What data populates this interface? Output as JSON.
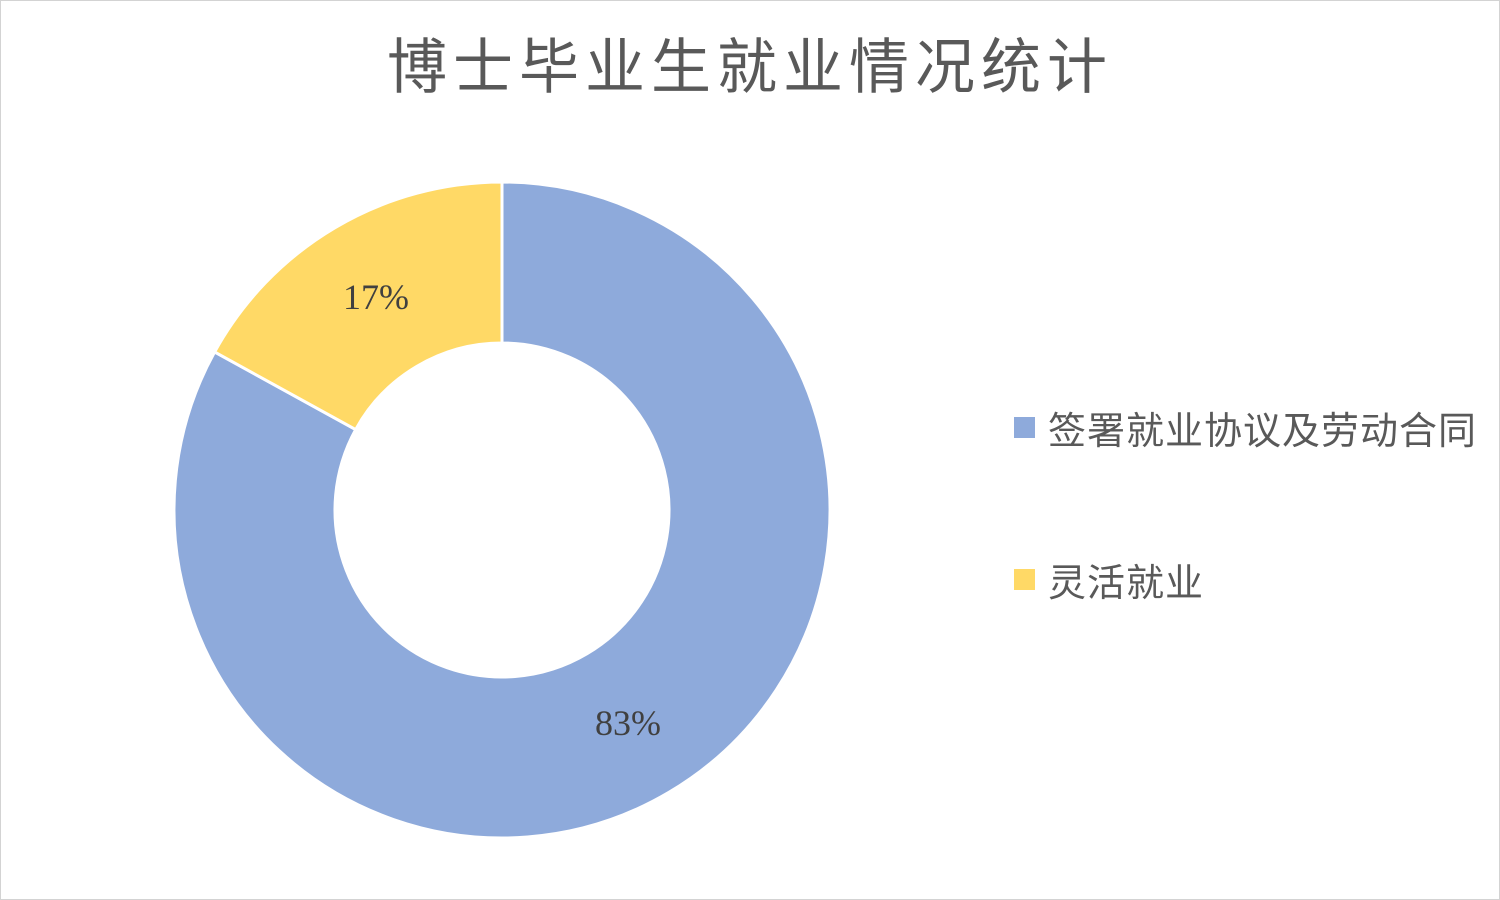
{
  "page": {
    "background_color": "#ffffff",
    "border_color": "#d3d3d3"
  },
  "chart_data": {
    "type": "pie",
    "subtype": "doughnut",
    "title": "博士毕业生就业情况统计",
    "categories": [
      "签署就业协议及劳动合同",
      "灵活就业"
    ],
    "values": [
      83,
      17
    ],
    "data_labels": [
      "83%",
      "17%"
    ],
    "colors": [
      "#8EAADB",
      "#FFD966"
    ],
    "start_angle_deg": 0,
    "direction": "clockwise",
    "hole_radius_ratio": 0.51,
    "slice_border_color": "#FFFFFF",
    "slice_border_width": 3,
    "legend_position": "right",
    "title_color": "#595959",
    "data_label_color": "#404040"
  },
  "legend": {
    "items": [
      {
        "label": "签署就业协议及劳动合同",
        "color": "#8EAADB"
      },
      {
        "label": "灵活就业",
        "color": "#FFD966"
      }
    ]
  }
}
